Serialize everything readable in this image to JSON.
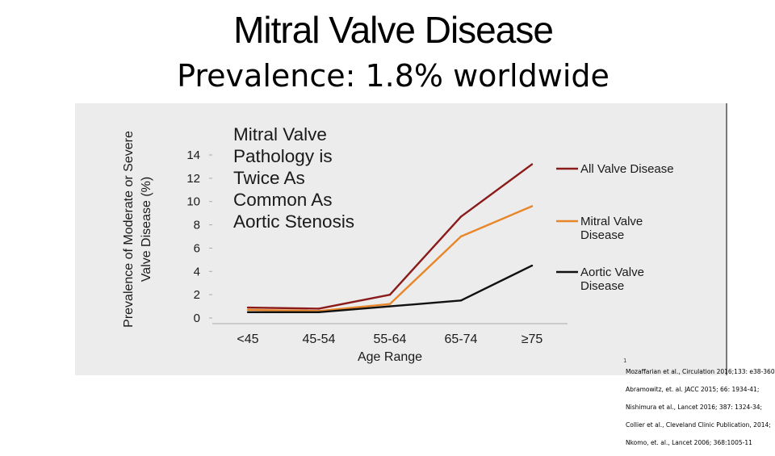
{
  "slide": {
    "title": "Mitral Valve Disease",
    "subtitle": "Prevalence: 1.8% worldwide"
  },
  "chart_data": {
    "type": "line",
    "annotation": [
      "Mitral Valve",
      "Pathology is",
      "Twice As",
      "Common As",
      "Aortic Stenosis"
    ],
    "xlabel": "Age Range",
    "ylabel_lines": [
      "Prevalence of Moderate or Severe",
      "Valve Disease (%)"
    ],
    "categories": [
      "<45",
      "45-54",
      "55-64",
      "65-74",
      "≥75"
    ],
    "ylim": [
      0,
      14
    ],
    "yticks": [
      0,
      2,
      4,
      6,
      8,
      10,
      12,
      14
    ],
    "series": [
      {
        "name": "All Valve Disease",
        "legend_lines": [
          "All Valve Disease"
        ],
        "color": "#8b1a1a",
        "values": [
          0.9,
          0.8,
          2.0,
          8.7,
          13.2
        ]
      },
      {
        "name": "Mitral Valve Disease",
        "legend_lines": [
          "Mitral Valve",
          "Disease"
        ],
        "color": "#e8862a",
        "values": [
          0.7,
          0.6,
          1.2,
          7.0,
          9.6
        ]
      },
      {
        "name": "Aortic Valve Disease",
        "legend_lines": [
          "Aortic Valve",
          "Disease"
        ],
        "color": "#111111",
        "values": [
          0.5,
          0.5,
          1.0,
          1.5,
          4.5
        ]
      }
    ]
  },
  "footnote_mark": "1",
  "references": [
    "Mozaffarian et al., Circulation 2016;133: e38-360;",
    "Abramowitz, et. al. JACC 2015; 66: 1934-41;",
    "Nishimura et al., Lancet 2016; 387: 1324-34;",
    "Collier et al., Cleveland Clinic Publication, 2014;",
    "Nkomo, et. al., Lancet 2006; 368:1005-11"
  ]
}
